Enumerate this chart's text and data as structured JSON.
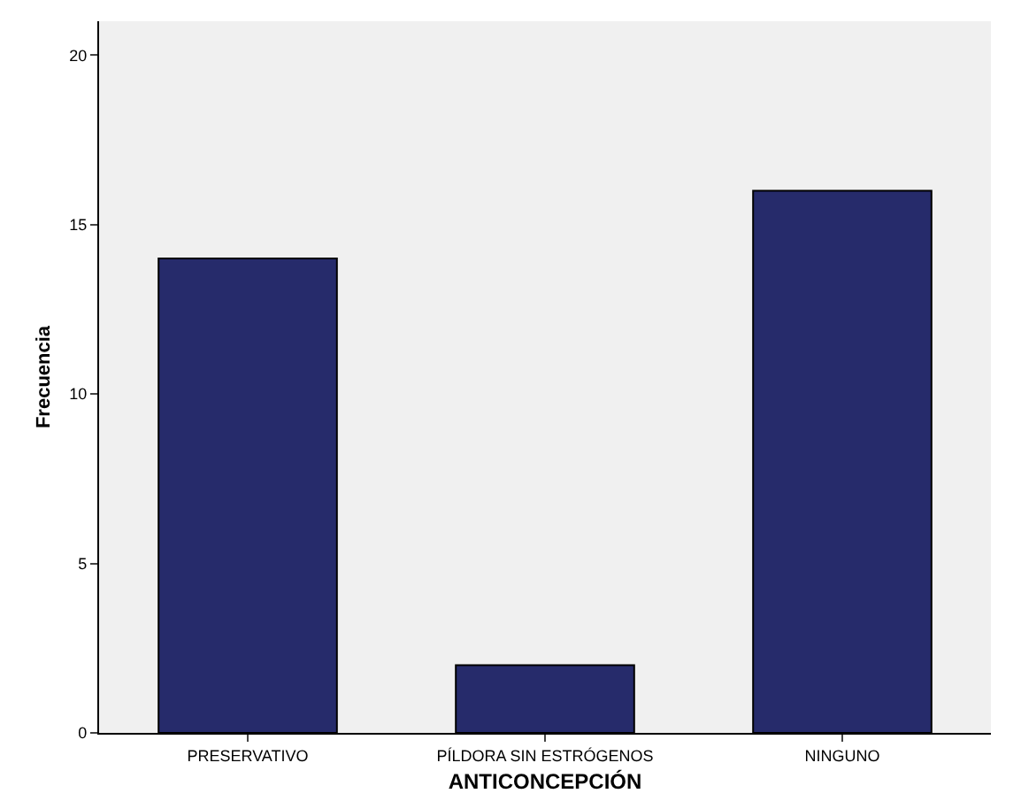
{
  "chart_data": {
    "type": "bar",
    "xlabel": "ANTICONCEPCIÓN",
    "ylabel": "Frecuencia",
    "categories": [
      "PRESERVATIVO",
      "PÍLDORA SIN ESTRÓGENOS",
      "NINGUNO"
    ],
    "values": [
      14,
      2,
      16
    ],
    "color": "#262b6b",
    "ylim": [
      0,
      21
    ],
    "yticks": [
      0,
      5,
      10,
      15,
      20
    ],
    "grid": false,
    "legend": false
  }
}
